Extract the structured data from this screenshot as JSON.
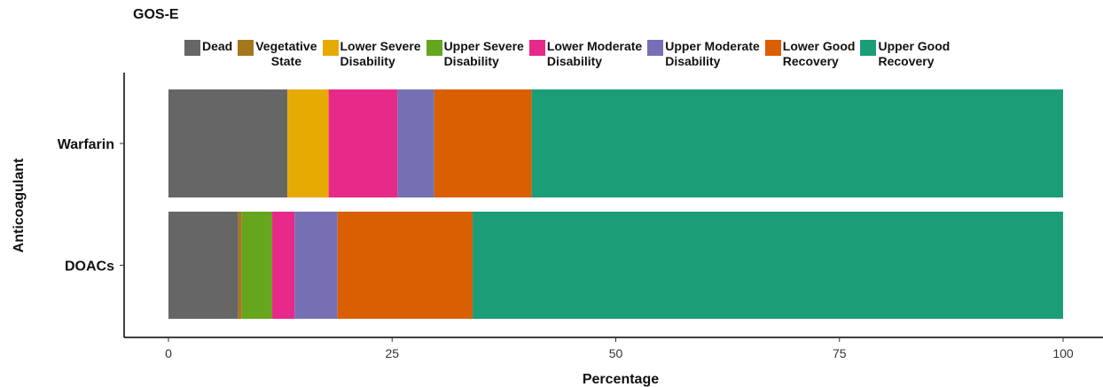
{
  "chart_data": {
    "type": "bar",
    "orientation": "horizontal",
    "stacked": true,
    "title": "GOS-E",
    "xlabel": "Percentage",
    "ylabel": "Anticoagulant",
    "xlim": [
      0,
      100
    ],
    "xticks": [
      "0",
      "25",
      "50",
      "75",
      "100"
    ],
    "grid": false,
    "legend_position": "top",
    "categories": [
      "Warfarin",
      "DOACs"
    ],
    "series": [
      {
        "name": "Dead",
        "color": "#666666",
        "values": [
          13.3,
          7.8
        ]
      },
      {
        "name": "Vegetative State",
        "color": "#a6761d",
        "values": [
          0.0,
          0.4
        ]
      },
      {
        "name": "Lower Severe Disability",
        "color": "#e6ab02",
        "values": [
          4.6,
          0.0
        ]
      },
      {
        "name": "Upper Severe Disability",
        "color": "#66a61e",
        "values": [
          0.0,
          3.4
        ]
      },
      {
        "name": "Lower Moderate Disability",
        "color": "#e7298a",
        "values": [
          7.7,
          2.5
        ]
      },
      {
        "name": "Upper Moderate Disability",
        "color": "#7570b3",
        "values": [
          4.1,
          4.8
        ]
      },
      {
        "name": "Lower Good Recovery",
        "color": "#d95f02",
        "values": [
          10.9,
          15.1
        ]
      },
      {
        "name": "Upper Good Recovery",
        "color": "#1b9e77",
        "values": [
          59.4,
          66.0
        ]
      }
    ]
  },
  "legend": {
    "items": [
      {
        "line1": "Dead",
        "line2": ""
      },
      {
        "line1": "Vegetative",
        "line2": "State"
      },
      {
        "line1": "Lower Severe",
        "line2": "Disability"
      },
      {
        "line1": "Upper Severe",
        "line2": "Disability"
      },
      {
        "line1": "Lower Moderate",
        "line2": "Disability"
      },
      {
        "line1": "Upper Moderate",
        "line2": "Disability"
      },
      {
        "line1": "Lower Good",
        "line2": "Recovery"
      },
      {
        "line1": "Upper Good",
        "line2": "Recovery"
      }
    ]
  }
}
